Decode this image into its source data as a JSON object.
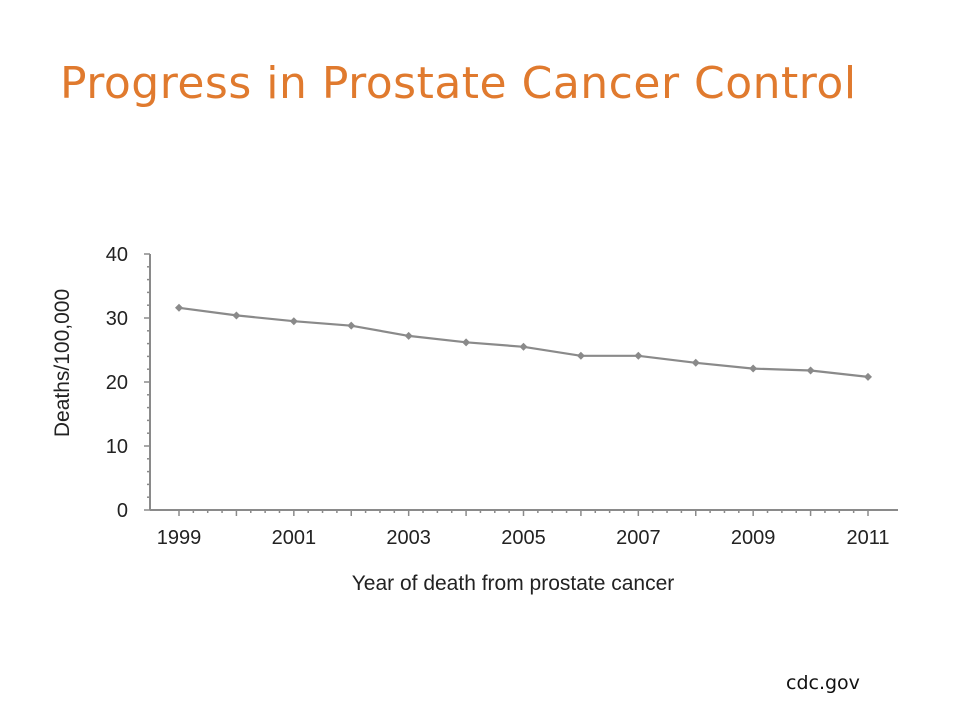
{
  "slide": {
    "title": "Progress in Prostate Cancer Control",
    "source": "cdc.gov"
  },
  "chart_data": {
    "type": "line",
    "title": "",
    "xlabel": "Year of death from prostate cancer",
    "ylabel": "Deaths/100,000",
    "xlim": [
      1999,
      2011
    ],
    "ylim": [
      0,
      40
    ],
    "x_ticks": [
      1999,
      2001,
      2003,
      2005,
      2007,
      2009,
      2011
    ],
    "y_ticks": [
      0,
      10,
      20,
      30,
      40
    ],
    "grid": false,
    "legend": "none",
    "line_color": "#8a8a8a",
    "x": [
      1999,
      2000,
      2001,
      2002,
      2003,
      2004,
      2005,
      2006,
      2007,
      2008,
      2009,
      2010,
      2011
    ],
    "series": [
      {
        "values": [
          31.6,
          30.4,
          29.5,
          28.8,
          27.2,
          26.2,
          25.5,
          24.1,
          24.1,
          23.0,
          22.1,
          21.8,
          20.8
        ]
      }
    ]
  }
}
